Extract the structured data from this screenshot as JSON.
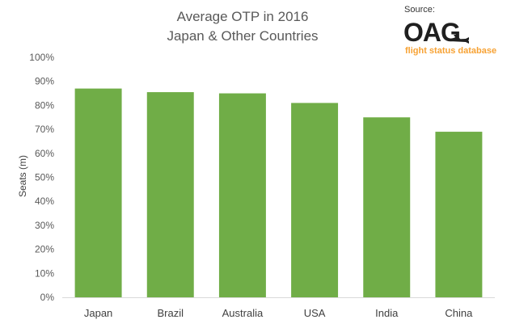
{
  "source": {
    "label": "Source:",
    "logo_text": "OAG",
    "logo_icon": "airplane-icon",
    "tagline": "flight status database"
  },
  "colors": {
    "bar": "#70ad47",
    "axis": "#d9d9d9",
    "logo_dark": "#1f1f1f",
    "tagline": "#f7a234"
  },
  "chart_data": {
    "type": "bar",
    "title": "Average OTP in 2016",
    "subtitle": "Japan & Other Countries",
    "xlabel": "",
    "ylabel": "Seats (m)",
    "categories": [
      "Japan",
      "Brazil",
      "Australia",
      "USA",
      "India",
      "China"
    ],
    "values": [
      87,
      85.5,
      85,
      81,
      75,
      69
    ],
    "ylim": [
      0,
      100
    ],
    "yticks": [
      0,
      10,
      20,
      30,
      40,
      50,
      60,
      70,
      80,
      90,
      100
    ],
    "ytick_labels": [
      "0%",
      "10%",
      "20%",
      "30%",
      "40%",
      "50%",
      "60%",
      "70%",
      "80%",
      "90%",
      "100%"
    ],
    "grid": false,
    "legend": "none"
  }
}
